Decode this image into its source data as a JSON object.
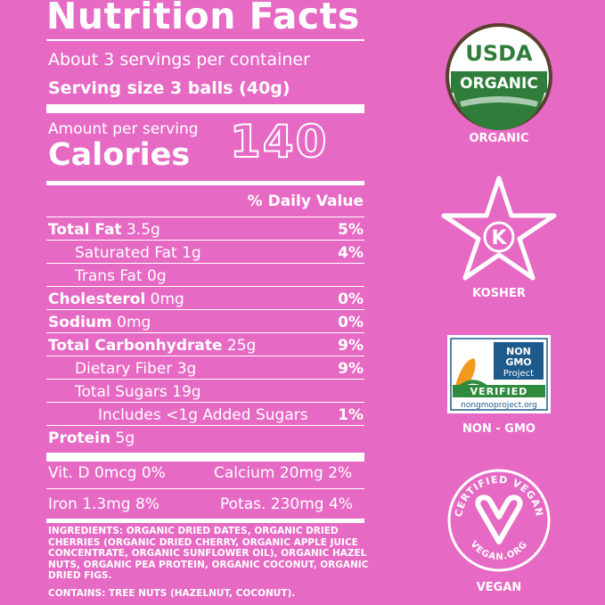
{
  "nutrition": {
    "title": "Nutrition Facts",
    "servings_per_container": "About 3 servings per container",
    "serving_size": "Serving size 3 balls (40g)",
    "amount_per_serving": "Amount per serving",
    "calories_label": "Calories",
    "calories_value": "140",
    "daily_value_header": "% Daily Value",
    "rows": [
      {
        "bold": "Total Fat",
        "rest": " 3.5g",
        "pct": "5%"
      },
      {
        "bold": "",
        "rest": "Saturated Fat 1g",
        "pct": "4%"
      },
      {
        "bold": "",
        "rest": "Trans Fat 0g",
        "pct": ""
      },
      {
        "bold": "Cholesterol",
        "rest": " 0mg",
        "pct": "0%"
      },
      {
        "bold": "Sodium",
        "rest": " 0mg",
        "pct": "0%"
      },
      {
        "bold": "Total Carbonhydrate",
        "rest": " 25g",
        "pct": "9%"
      },
      {
        "bold": "",
        "rest": "Dietary Fiber 3g",
        "pct": "9%"
      },
      {
        "bold": "",
        "rest": "Total Sugars 19g",
        "pct": ""
      },
      {
        "bold": "",
        "rest": "Includes <1g Added Sugars",
        "pct": "1%"
      },
      {
        "bold": "Protein",
        "rest": " 5g",
        "pct": ""
      }
    ],
    "vitamins": {
      "vit_d": "Vit. D 0mcg 0%",
      "calcium": "Calcium 20mg 2%",
      "iron": "Iron 1.3mg 8%",
      "potassium": "Potas. 230mg 4%"
    },
    "ingredients": "INGREDIENTS: ORGANIC DRIED DATES, ORGANIC DRIED CHERRIES (ORGANIC DRIED CHERRY, ORGANIC APPLE JUICE CONCENTRATE, ORGANIC SUNFLOWER OIL), ORGANIC HAZEL NUTS, ORGANIC PEA PROTEIN, ORGANIC COCONUT, ORGANIC DRIED FIGS.",
    "contains": "CONTAINS: TREE NUTS (HAZELNUT, COCONUT)."
  },
  "badges": {
    "usda_top": "USDA",
    "usda_band": "ORGANIC",
    "usda_label": "ORGANIC",
    "kosher_letter": "K",
    "kosher_label": "KOSHER",
    "nongmo_title": "NON GMO Project",
    "nongmo_verified": "VERIFIED",
    "nongmo_url": "nongmoproject.org",
    "nongmo_label": "NON - GMO",
    "vegan_ring": "CERTIFIED VEGAN",
    "vegan_url": "VEGAN.ORG",
    "vegan_label": "VEGAN"
  },
  "colors": {
    "background": "#e66ac4",
    "text": "#ffffff",
    "usda_green": "#2f7d3a",
    "nongmo_blue": "#1e5b8c",
    "nongmo_green": "#2e8b3d"
  }
}
